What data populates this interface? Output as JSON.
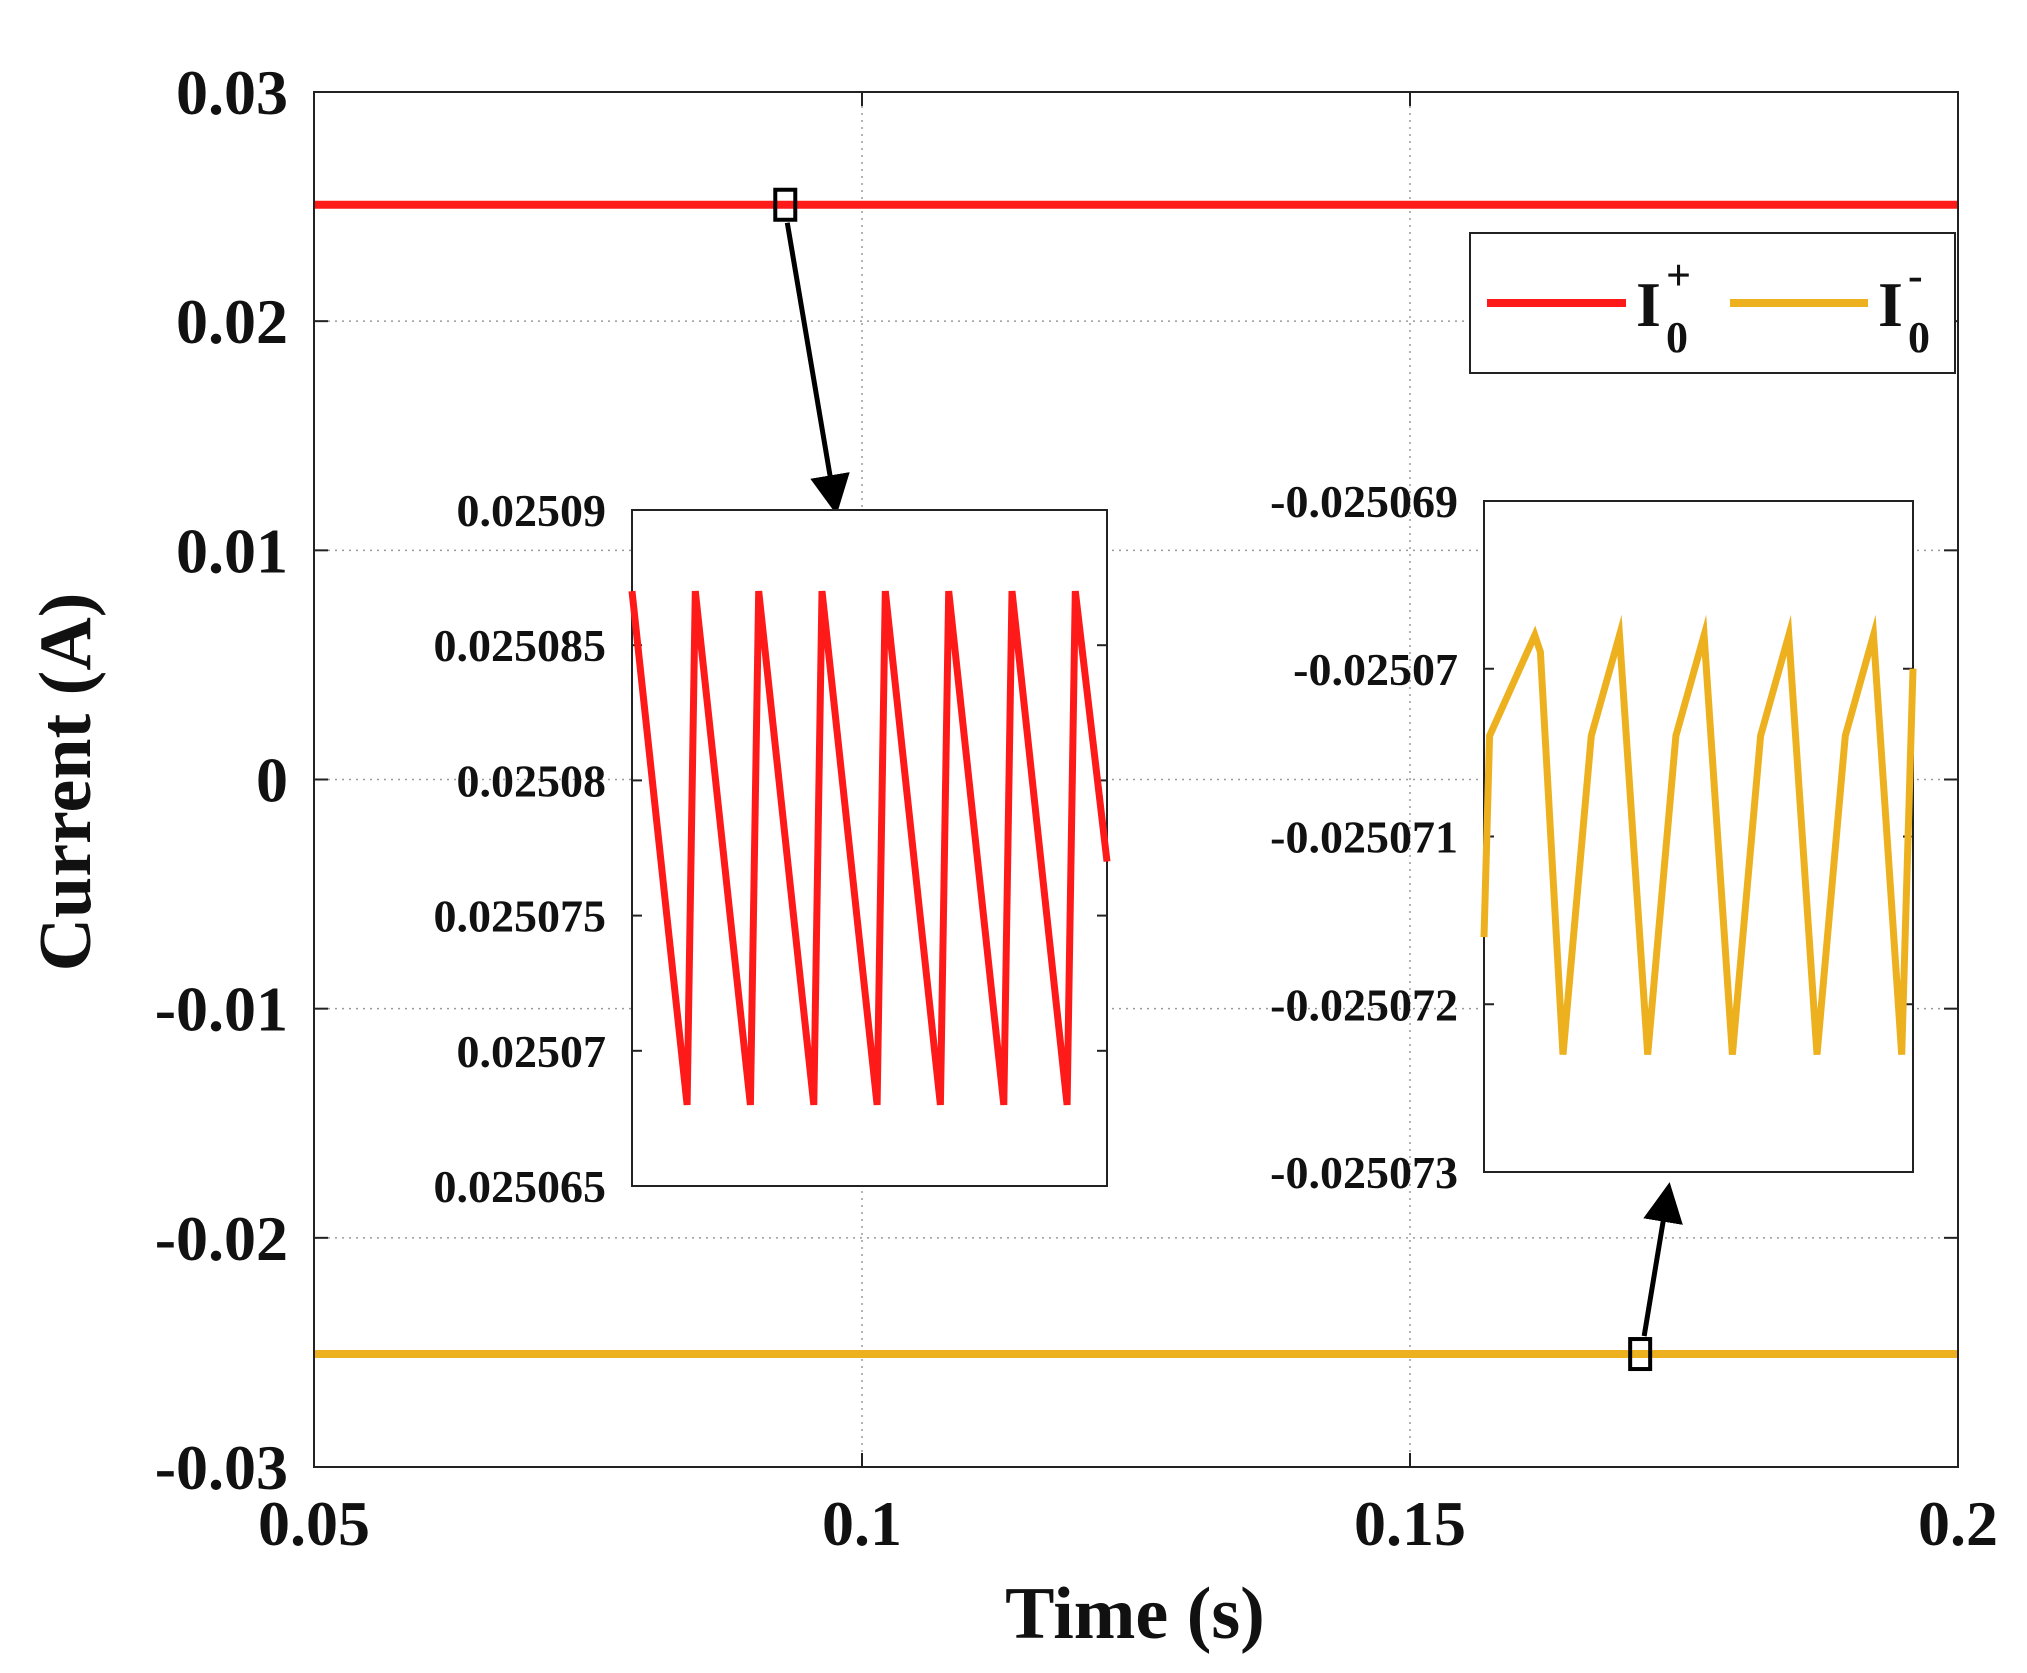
{
  "chart_data": {
    "type": "line",
    "xlabel": "Time (s)",
    "ylabel": "Current (A)",
    "xlim": [
      0.05,
      0.2
    ],
    "ylim": [
      -0.03,
      0.03
    ],
    "xticks": [
      0.05,
      0.1,
      0.15,
      0.2
    ],
    "xtick_labels": [
      "0.05",
      "0.1",
      "0.15",
      "0.2"
    ],
    "yticks": [
      0.03,
      0.02,
      0.01,
      0,
      -0.01,
      -0.02,
      -0.03
    ],
    "ytick_labels": [
      "0.03",
      "0.02",
      "0.01",
      "0",
      "-0.01",
      "-0.02",
      "-0.03"
    ],
    "grid": true,
    "legend_position": "top-right",
    "colors": {
      "pos": "#ff1a1a",
      "neg": "#edb120",
      "axis": "#222222",
      "grid": "#9a9a9a"
    },
    "series": [
      {
        "name": "I0+",
        "label_main": "I",
        "label_sub": "0",
        "label_sup": "+",
        "value": 0.02508,
        "x": [
          0.05,
          0.2
        ]
      },
      {
        "name": "I0-",
        "label_main": "I",
        "label_sub": "0",
        "label_sup": "-",
        "value": -0.025071,
        "x": [
          0.05,
          0.2
        ]
      }
    ],
    "markers": [
      {
        "series": 0,
        "x": 0.093,
        "y": 0.02508
      },
      {
        "series": 1,
        "x": 0.171,
        "y": -0.025071
      }
    ],
    "insets": [
      {
        "series": 0,
        "ylim": [
          0.025065,
          0.02509
        ],
        "yticks": [
          0.02509,
          0.025085,
          0.02508,
          0.025075,
          0.02507,
          0.025065
        ],
        "ytick_labels": [
          "0.02509",
          "0.025085",
          "0.02508",
          "0.025075",
          "0.02507",
          "0.025065"
        ],
        "t_span": 7.5,
        "samples": [
          [
            0.0,
            0.025087
          ],
          [
            0.87,
            0.025068
          ],
          [
            1.0,
            0.025087
          ],
          [
            1.87,
            0.025068
          ],
          [
            2.0,
            0.025087
          ],
          [
            2.87,
            0.025068
          ],
          [
            3.0,
            0.025087
          ],
          [
            3.87,
            0.025068
          ],
          [
            4.0,
            0.025087
          ],
          [
            4.87,
            0.025068
          ],
          [
            5.0,
            0.025087
          ],
          [
            5.87,
            0.025068
          ],
          [
            6.0,
            0.025087
          ],
          [
            6.87,
            0.025068
          ],
          [
            7.0,
            0.025087
          ],
          [
            7.5,
            0.025077
          ]
        ]
      },
      {
        "series": 1,
        "ylim": [
          -0.025073,
          -0.025069
        ],
        "yticks": [
          -0.025069,
          -0.02507,
          -0.025071,
          -0.025072,
          -0.025073
        ],
        "ytick_labels": [
          "-0.025069",
          "-0.02507",
          "-0.025071",
          "-0.025072",
          "-0.025073"
        ],
        "t_span": 7.6,
        "samples": [
          [
            0.0,
            -0.0250716
          ],
          [
            0.1,
            -0.0250704
          ],
          [
            0.9,
            -0.0250698
          ],
          [
            1.0,
            -0.0250699
          ],
          [
            1.4,
            -0.0250723
          ],
          [
            1.9,
            -0.0250704
          ],
          [
            2.4,
            -0.0250698
          ],
          [
            2.9,
            -0.0250723
          ],
          [
            3.4,
            -0.0250704
          ],
          [
            3.9,
            -0.0250698
          ],
          [
            4.4,
            -0.0250723
          ],
          [
            4.9,
            -0.0250704
          ],
          [
            5.4,
            -0.0250698
          ],
          [
            5.9,
            -0.0250723
          ],
          [
            6.4,
            -0.0250704
          ],
          [
            6.9,
            -0.0250698
          ],
          [
            7.4,
            -0.0250723
          ],
          [
            7.6,
            -0.02507
          ]
        ]
      }
    ]
  }
}
